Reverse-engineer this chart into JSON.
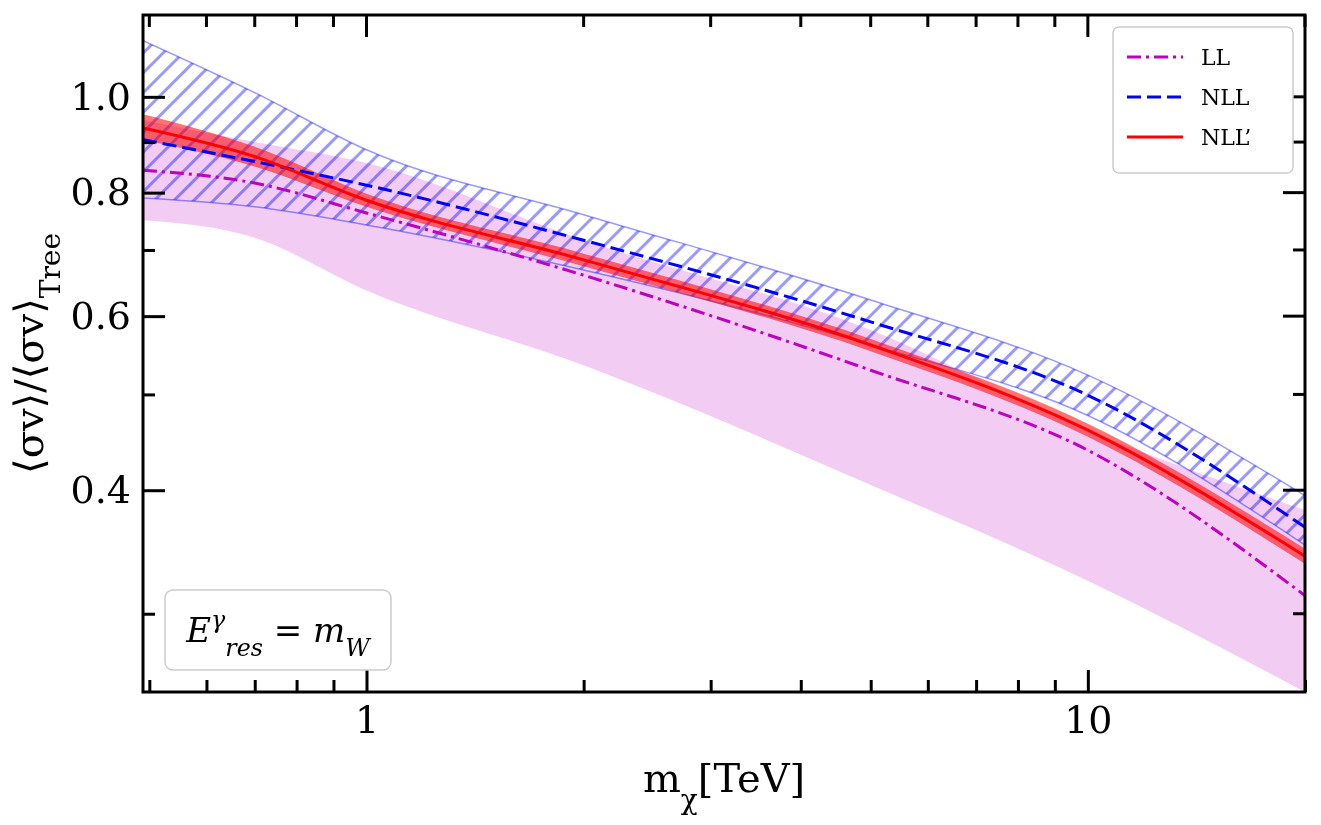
{
  "chart_data": {
    "type": "line",
    "xlabel": "m$_{χ}$[TeV]",
    "ylabel": "⟨σv⟩/⟨σv⟩$_{Tree}$",
    "log": "xy",
    "legend": "top right",
    "grid": false,
    "xlim": [
      0.49,
      20
    ],
    "ylim": [
      0.25,
      1.21
    ],
    "xticks": [
      {
        "value": 0.5,
        "label": null
      },
      {
        "value": 0.6,
        "label": null
      },
      {
        "value": 0.7,
        "label": null
      },
      {
        "value": 0.8,
        "label": null
      },
      {
        "value": 0.9,
        "label": null
      },
      1,
      {
        "value": 2,
        "label": null
      },
      {
        "value": 3,
        "label": null
      },
      {
        "value": 4,
        "label": null
      },
      {
        "value": 5,
        "label": null
      },
      {
        "value": 6,
        "label": null
      },
      {
        "value": 7,
        "label": null
      },
      {
        "value": 8,
        "label": null
      },
      {
        "value": 9,
        "label": null
      },
      10,
      {
        "value": 20,
        "label": null
      }
    ],
    "yticks": [
      {
        "value": 0.3,
        "label": null
      },
      {
        "value": 0.4,
        "label": "0.4"
      },
      {
        "value": 0.5,
        "label": null
      },
      {
        "value": 0.6,
        "label": "0.6"
      },
      {
        "value": 0.7,
        "label": null
      },
      {
        "value": 0.8,
        "label": "0.8"
      },
      {
        "value": 0.9,
        "label": null
      },
      {
        "value": 1.0,
        "label": "1.0"
      }
    ],
    "x": [
      0.49,
      0.7,
      1,
      2,
      5,
      10,
      20
    ],
    "series": [
      {
        "name": "LL",
        "color": "#bf00bf",
        "line_style": "dashdot",
        "values": [
          0.843,
          0.818,
          0.763,
          0.66,
          0.529,
          0.439,
          0.313
        ],
        "lower": [
          0.75,
          0.72,
          0.637,
          0.535,
          0.405,
          0.324,
          0.25
        ],
        "upper": [
          0.947,
          0.9,
          0.857,
          0.716,
          0.581,
          0.46,
          0.382
        ]
      },
      {
        "name": "NLL",
        "color": "#0000ff",
        "line_style": "dashed",
        "values": [
          0.905,
          0.86,
          0.814,
          0.716,
          0.592,
          0.499,
          0.367
        ],
        "lower": [
          0.79,
          0.774,
          0.742,
          0.668,
          0.561,
          0.476,
          0.352
        ],
        "upper": [
          1.14,
          1.01,
          0.884,
          0.76,
          0.623,
          0.523,
          0.395
        ]
      },
      {
        "name": "NLL’",
        "color": "#ff0000",
        "line_style": "solid",
        "values": [
          0.93,
          0.87,
          0.786,
          0.684,
          0.561,
          0.46,
          0.343
        ],
        "lower": [
          0.905,
          0.85,
          0.774,
          0.674,
          0.553,
          0.453,
          0.337
        ],
        "upper": [
          0.96,
          0.89,
          0.798,
          0.694,
          0.569,
          0.467,
          0.349
        ]
      }
    ],
    "annotations": [
      "E$^{γ}$$_{res}$ = m$_{W}$"
    ]
  }
}
